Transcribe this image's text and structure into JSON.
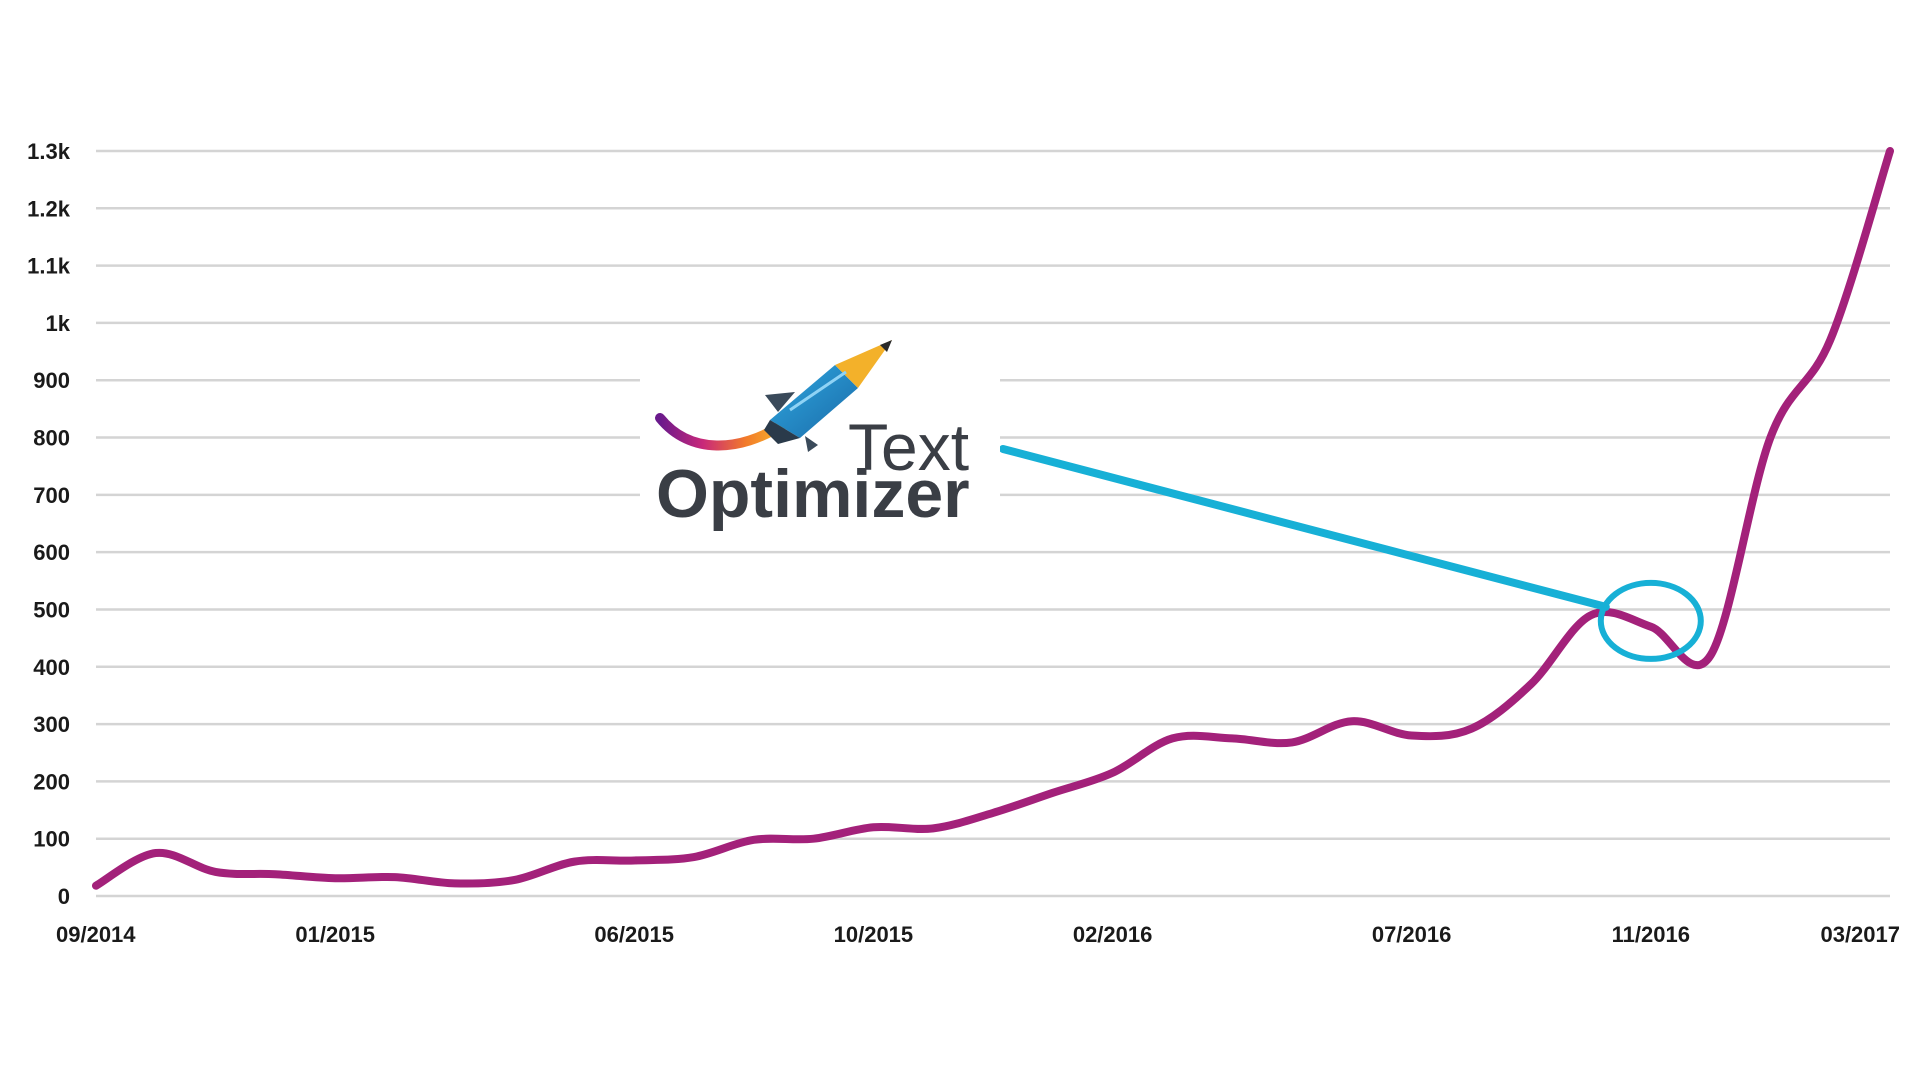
{
  "chart_data": {
    "type": "line",
    "x": [
      "09/2014",
      "10/2014",
      "11/2014",
      "12/2014",
      "01/2015",
      "02/2015",
      "03/2015",
      "04/2015",
      "05/2015",
      "06/2015",
      "07/2015",
      "08/2015",
      "09/2015",
      "10/2015",
      "11/2015",
      "12/2015",
      "01/2016",
      "02/2016",
      "03/2016",
      "04/2016",
      "05/2016",
      "06/2016",
      "07/2016",
      "08/2016",
      "09/2016",
      "10/2016",
      "11/2016",
      "12/2016",
      "01/2017",
      "02/2017",
      "03/2017"
    ],
    "series": [
      {
        "values": [
          18,
          75,
          42,
          38,
          31,
          33,
          22,
          28,
          60,
          62,
          68,
          98,
          100,
          120,
          118,
          145,
          180,
          215,
          275,
          275,
          268,
          305,
          280,
          292,
          370,
          490,
          470,
          420,
          800,
          970,
          1300
        ]
      }
    ],
    "x_ticks": [
      "09/2014",
      "01/2015",
      "06/2015",
      "10/2015",
      "02/2016",
      "07/2016",
      "11/2016",
      "03/2017"
    ],
    "y_ticks": [
      "0",
      "100",
      "200",
      "300",
      "400",
      "500",
      "600",
      "700",
      "800",
      "900",
      "1k",
      "1.1k",
      "1.2k",
      "1.3k"
    ],
    "ylim": [
      0,
      1300
    ],
    "grid": true,
    "line_color": "#a3217a",
    "annotation": {
      "target_x": "11/2016",
      "target_value": 480,
      "color": "#17b0d6"
    }
  },
  "logo": {
    "line1": "Text",
    "line2": "Optimizer",
    "icon": "pencil-rocket-icon"
  }
}
